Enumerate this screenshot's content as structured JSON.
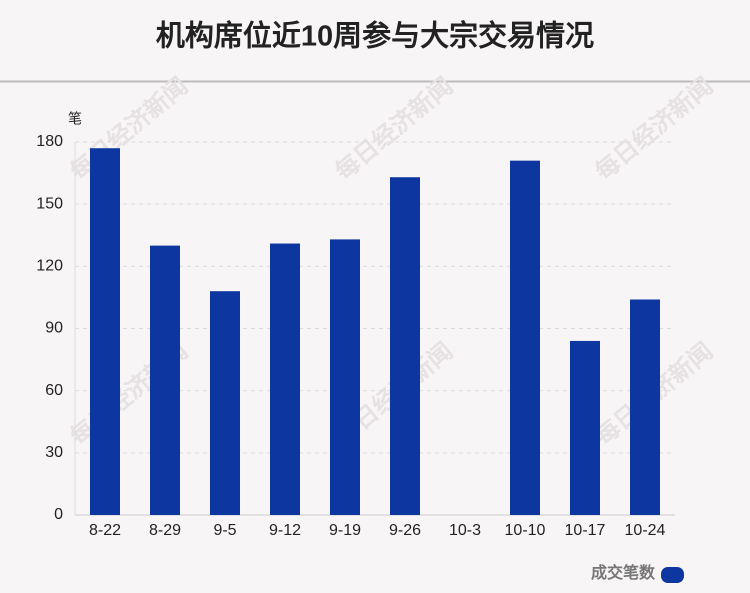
{
  "chart_data": {
    "type": "bar",
    "title": "机构席位近10周参与大宗交易情况",
    "y_unit": "笔",
    "categories": [
      "8-22",
      "8-29",
      "9-5",
      "9-12",
      "9-19",
      "9-26",
      "10-3",
      "10-10",
      "10-17",
      "10-24"
    ],
    "series": [
      {
        "name": "成交笔数",
        "color": "#0d36a0",
        "values": [
          177,
          130,
          108,
          131,
          133,
          163,
          0,
          171,
          84,
          104
        ]
      }
    ],
    "ylim": [
      0,
      180
    ],
    "yticks": [
      0,
      30,
      60,
      90,
      120,
      150,
      180
    ],
    "grid": true,
    "legend": "bottom-right",
    "watermark": "每日经济新闻"
  }
}
